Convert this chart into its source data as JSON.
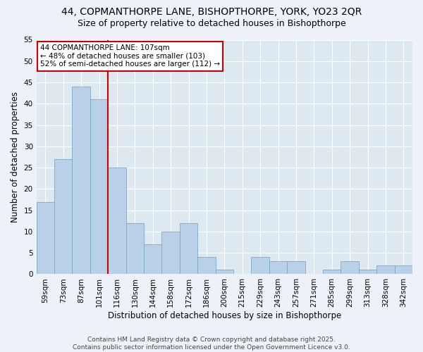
{
  "title1": "44, COPMANTHORPE LANE, BISHOPTHORPE, YORK, YO23 2QR",
  "title2": "Size of property relative to detached houses in Bishopthorpe",
  "xlabel": "Distribution of detached houses by size in Bishopthorpe",
  "ylabel": "Number of detached properties",
  "categories": [
    "59sqm",
    "73sqm",
    "87sqm",
    "101sqm",
    "116sqm",
    "130sqm",
    "144sqm",
    "158sqm",
    "172sqm",
    "186sqm",
    "200sqm",
    "215sqm",
    "229sqm",
    "243sqm",
    "257sqm",
    "271sqm",
    "285sqm",
    "299sqm",
    "313sqm",
    "328sqm",
    "342sqm"
  ],
  "values": [
    17,
    27,
    44,
    41,
    25,
    12,
    7,
    10,
    12,
    4,
    1,
    0,
    4,
    3,
    3,
    0,
    1,
    3,
    1,
    2,
    2
  ],
  "bar_color": "#b8d0e8",
  "bar_edge_color": "#7aaac8",
  "vline_x": 3.5,
  "vline_color": "#cc0000",
  "annotation_text": "44 COPMANTHORPE LANE: 107sqm\n← 48% of detached houses are smaller (103)\n52% of semi-detached houses are larger (112) →",
  "annotation_box_color": "#ffffff",
  "annotation_box_edge": "#cc0000",
  "ylim": [
    0,
    55
  ],
  "yticks": [
    0,
    5,
    10,
    15,
    20,
    25,
    30,
    35,
    40,
    45,
    50,
    55
  ],
  "footer": "Contains HM Land Registry data © Crown copyright and database right 2025.\nContains public sector information licensed under the Open Government Licence v3.0.",
  "fig_bg_color": "#eef2f8",
  "plot_bg_color": "#dde8f0",
  "title_fontsize": 10,
  "subtitle_fontsize": 9,
  "axis_label_fontsize": 8.5,
  "tick_fontsize": 7.5,
  "footer_fontsize": 6.5,
  "annot_fontsize": 7.5
}
